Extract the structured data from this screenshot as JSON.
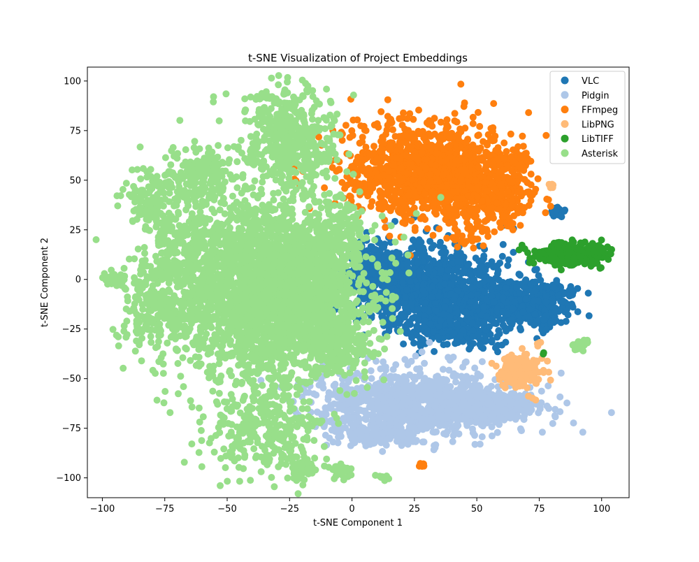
{
  "chart_data": {
    "type": "scatter",
    "title": "t-SNE Visualization of Project Embeddings",
    "xlabel": "t-SNE Component 1",
    "ylabel": "t-SNE Component 2",
    "xlim": [
      -106,
      111
    ],
    "ylim": [
      -110,
      107
    ],
    "xticks": [
      -100,
      -75,
      -50,
      -25,
      0,
      25,
      50,
      75,
      100
    ],
    "yticks": [
      -100,
      -75,
      -50,
      -25,
      0,
      25,
      50,
      75,
      100
    ],
    "grid": false,
    "legend_position": "top-right",
    "series": [
      {
        "name": "VLC",
        "color": "#1f77b4",
        "clusters": [
          {
            "center": [
              30,
              -5
            ],
            "spread": [
              14,
              11
            ],
            "n": 1100
          },
          {
            "center": [
              8,
              8
            ],
            "spread": [
              5,
              5
            ],
            "n": 220
          },
          {
            "center": [
              65,
              -12
            ],
            "spread": [
              9,
              7
            ],
            "n": 350
          },
          {
            "center": [
              40,
              -25
            ],
            "spread": [
              9,
              4
            ],
            "n": 200
          },
          {
            "center": [
              78,
              -12
            ],
            "spread": [
              5,
              5
            ],
            "n": 160
          },
          {
            "center": [
              83,
              34
            ],
            "spread": [
              1.2,
              1.2
            ],
            "n": 30
          },
          {
            "center": [
              88,
              -7
            ],
            "spread": [
              1,
              1
            ],
            "n": 8
          }
        ]
      },
      {
        "name": "Pidgin",
        "color": "#aec7e8",
        "clusters": [
          {
            "center": [
              25,
              -62
            ],
            "spread": [
              20,
              8
            ],
            "n": 1000
          },
          {
            "center": [
              58,
              -65
            ],
            "spread": [
              9,
              4
            ],
            "n": 200
          },
          {
            "center": [
              10,
              -78
            ],
            "spread": [
              9,
              3
            ],
            "n": 150
          },
          {
            "center": [
              14,
              27
            ],
            "spread": [
              0.6,
              0.6
            ],
            "n": 3
          },
          {
            "center": [
              33,
              -84
            ],
            "spread": [
              0.8,
              0.8
            ],
            "n": 4
          }
        ]
      },
      {
        "name": "FFmpeg",
        "color": "#ff7f0e",
        "clusters": [
          {
            "center": [
              30,
              55
            ],
            "spread": [
              17,
              12
            ],
            "n": 1200
          },
          {
            "center": [
              55,
              40
            ],
            "spread": [
              8,
              8
            ],
            "n": 250
          },
          {
            "center": [
              65,
              60
            ],
            "spread": [
              4,
              3
            ],
            "n": 60
          },
          {
            "center": [
              28,
              -94
            ],
            "spread": [
              0.8,
              0.8
            ],
            "n": 8
          },
          {
            "center": [
              45,
              20
            ],
            "spread": [
              4,
              1.5
            ],
            "n": 20
          },
          {
            "center": [
              56,
              76
            ],
            "spread": [
              0.6,
              0.6
            ],
            "n": 3
          }
        ]
      },
      {
        "name": "LibPNG",
        "color": "#ffbb78",
        "clusters": [
          {
            "center": [
              68,
              -46
            ],
            "spread": [
              4,
              4
            ],
            "n": 220
          },
          {
            "center": [
              80,
              48
            ],
            "spread": [
              0.8,
              0.8
            ],
            "n": 10
          },
          {
            "center": [
              75,
              -32
            ],
            "spread": [
              0.8,
              0.8
            ],
            "n": 5
          }
        ]
      },
      {
        "name": "LibTIFF",
        "color": "#2ca02c",
        "clusters": [
          {
            "center": [
              87,
              13
            ],
            "spread": [
              7,
              3
            ],
            "n": 320
          },
          {
            "center": [
              77,
              -37
            ],
            "spread": [
              0.5,
              0.5
            ],
            "n": 2
          }
        ]
      },
      {
        "name": "Asterisk",
        "color": "#98df8a",
        "clusters": [
          {
            "center": [
              -30,
              -5
            ],
            "spread": [
              17,
              22
            ],
            "n": 2600
          },
          {
            "center": [
              -25,
              70
            ],
            "spread": [
              9,
              12
            ],
            "n": 450
          },
          {
            "center": [
              -65,
              10
            ],
            "spread": [
              11,
              24
            ],
            "n": 550
          },
          {
            "center": [
              -80,
              -15
            ],
            "spread": [
              7,
              14
            ],
            "n": 170
          },
          {
            "center": [
              -35,
              -75
            ],
            "spread": [
              12,
              12
            ],
            "n": 300
          },
          {
            "center": [
              -5,
              -35
            ],
            "spread": [
              6,
              7
            ],
            "n": 160
          },
          {
            "center": [
              -5,
              20
            ],
            "spread": [
              5,
              10
            ],
            "n": 120
          },
          {
            "center": [
              -60,
              55
            ],
            "spread": [
              7,
              7
            ],
            "n": 120
          },
          {
            "center": [
              -80,
              40
            ],
            "spread": [
              5,
              8
            ],
            "n": 120
          },
          {
            "center": [
              -20,
              -95
            ],
            "spread": [
              3,
              3
            ],
            "n": 50
          },
          {
            "center": [
              -95,
              0
            ],
            "spread": [
              3,
              2
            ],
            "n": 30
          },
          {
            "center": [
              91,
              -33
            ],
            "spread": [
              1.5,
              1.3
            ],
            "n": 40
          },
          {
            "center": [
              -4,
              -96
            ],
            "spread": [
              2,
              2
            ],
            "n": 25
          },
          {
            "center": [
              12,
              -100
            ],
            "spread": [
              1.5,
              1
            ],
            "n": 10
          },
          {
            "center": [
              -35,
              92
            ],
            "spread": [
              2,
              1
            ],
            "n": 15
          }
        ]
      }
    ]
  }
}
